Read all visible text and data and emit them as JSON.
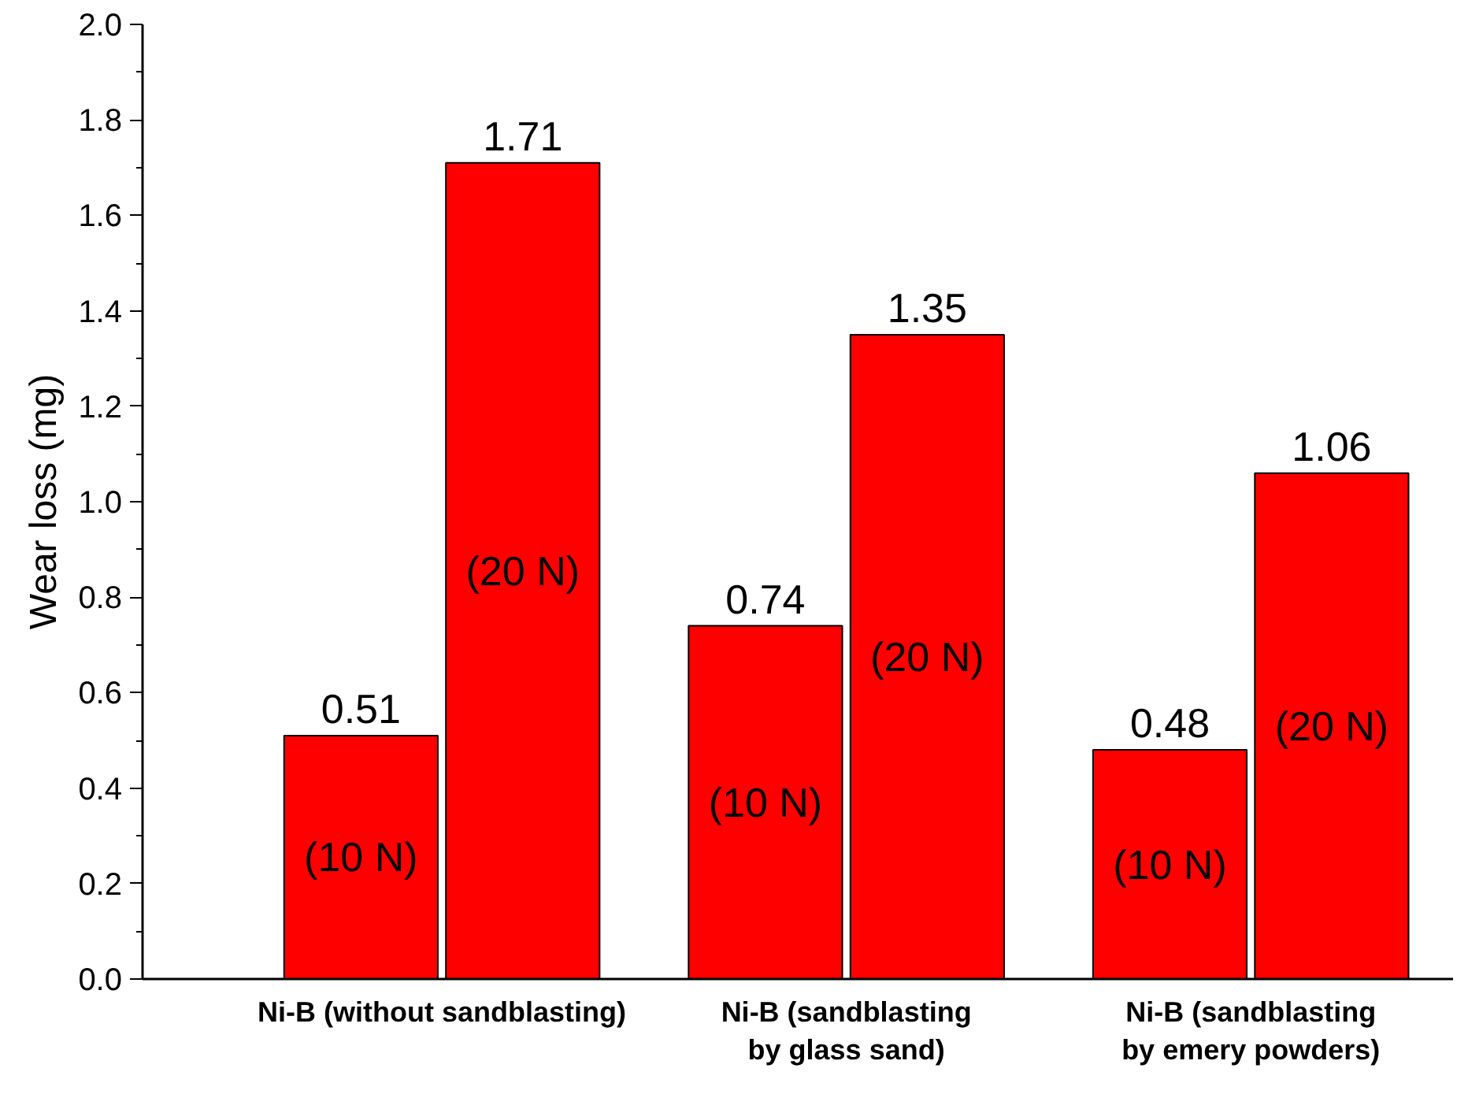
{
  "chart_data": {
    "type": "bar",
    "ylabel": "Wear loss (mg)",
    "categories": [
      "Ni-B (without sandblasting)",
      "Ni-B (sandblasting\nby glass sand)",
      "Ni-B (sandblasting\nby emery powders)"
    ],
    "series": [
      {
        "name": "(10 N)",
        "color": "#ff0000",
        "values": [
          0.51,
          0.74,
          0.48
        ]
      },
      {
        "name": "(20 N)",
        "color": "#ff0000",
        "values": [
          1.71,
          1.35,
          1.06
        ]
      }
    ],
    "ylim": [
      0,
      2
    ],
    "yticks": [
      {
        "value": 0,
        "label": "0.0"
      },
      0.2,
      0.4,
      0.6,
      0.8,
      {
        "value": 1,
        "label": "1.0"
      },
      1.2,
      1.4,
      1.6,
      1.8,
      {
        "value": 2,
        "label": "2.0"
      }
    ],
    "data_labels": true,
    "grid": false
  }
}
